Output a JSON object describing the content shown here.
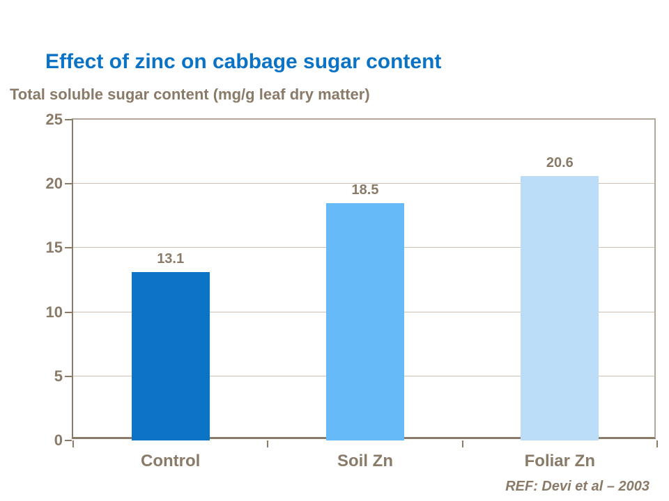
{
  "title": "Effect of zinc on cabbage sugar content",
  "subtitle": "Total soluble sugar content (mg/g leaf dry matter)",
  "reference": "REF: Devi et al – 2003",
  "colors": {
    "title_blue": "#0B73C6",
    "text_brown": "#8A7A68",
    "axis_line": "#8A7A68",
    "plot_border": "#B2A79A",
    "gridline": "#C9BFB2",
    "background": "#FFFFFF",
    "bar_colors": [
      "#0B74C4",
      "#67BAF8",
      "#BBDDF8"
    ]
  },
  "chart_data": {
    "type": "bar",
    "categories": [
      "Control",
      "Soil Zn",
      "Foliar Zn"
    ],
    "values": [
      13.1,
      18.5,
      20.6
    ],
    "value_labels": [
      "13.1",
      "18.5",
      "20.6"
    ],
    "title": "Effect of zinc on cabbage sugar content",
    "xlabel": "",
    "ylabel": "Total soluble sugar content (mg/g leaf dry matter)",
    "ylim": [
      0,
      25
    ],
    "yticks": [
      0,
      5,
      10,
      15,
      20,
      25
    ],
    "ytick_labels": [
      "0",
      "5",
      "10",
      "15",
      "20",
      "25"
    ],
    "grid": true,
    "legend": false,
    "bar_colors": [
      "#0B74C4",
      "#67BAF8",
      "#BBDDF8"
    ],
    "annotation": "REF: Devi et al – 2003"
  }
}
